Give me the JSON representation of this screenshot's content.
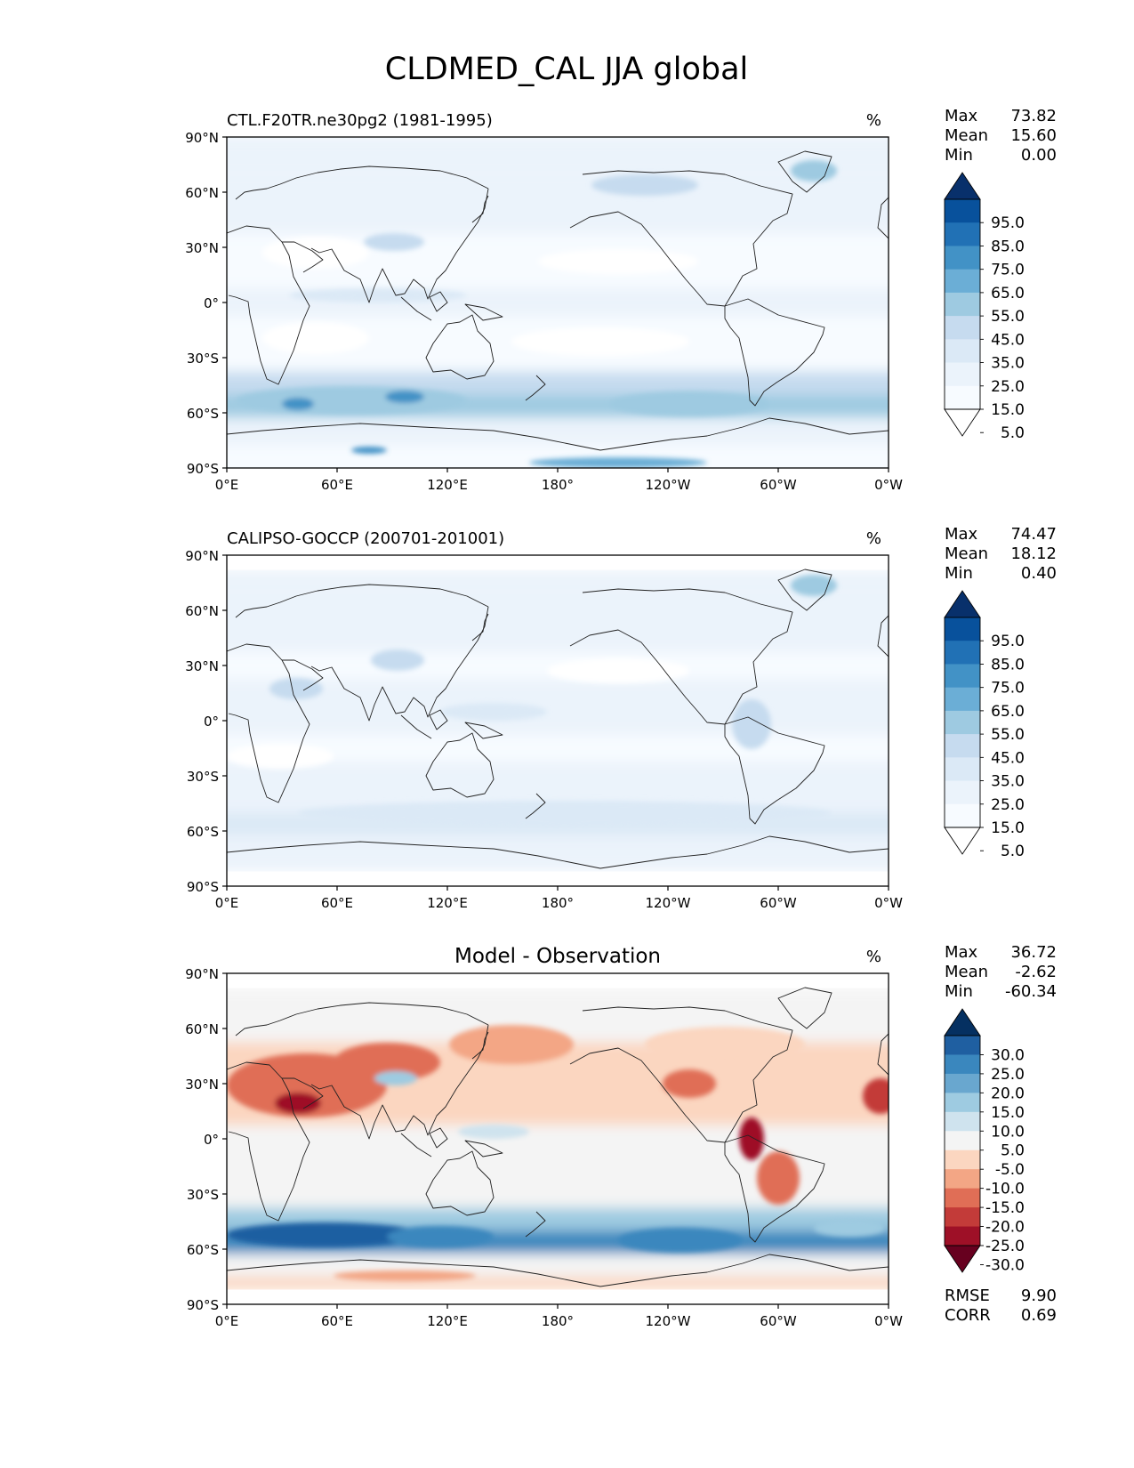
{
  "figure": {
    "title": "CLDMED_CAL JJA global"
  },
  "axes": {
    "lat_ticks": [
      "90°N",
      "60°N",
      "30°N",
      "0°",
      "30°S",
      "60°S",
      "90°S"
    ],
    "lon_ticks": [
      "0°E",
      "60°E",
      "120°E",
      "180°",
      "120°W",
      "60°W",
      "0°W"
    ]
  },
  "chart_data": [
    {
      "type": "heatmap",
      "title": "CTL.F20TR.ne30pg2 (1981-1995)",
      "units": "%",
      "stats": {
        "max_label": "Max",
        "max": "73.82",
        "mean_label": "Mean",
        "mean": "15.60",
        "min_label": "Min",
        "min": "0.00"
      },
      "colorbar": {
        "levels": [
          "95.0",
          "85.0",
          "75.0",
          "65.0",
          "55.0",
          "45.0",
          "35.0",
          "25.0",
          "15.0",
          "5.0"
        ],
        "colors": [
          "#08306b",
          "#08519c",
          "#2171b5",
          "#4292c6",
          "#6baed6",
          "#9ecae1",
          "#c6dbef",
          "#dbe9f6",
          "#ebf3fb",
          "#f7fbff",
          "#ffffff"
        ]
      },
      "zonal_mean_profile": [
        {
          "lat": 80,
          "value": 20
        },
        {
          "lat": 60,
          "value": 22
        },
        {
          "lat": 45,
          "value": 18
        },
        {
          "lat": 30,
          "value": 10
        },
        {
          "lat": 15,
          "value": 12
        },
        {
          "lat": 0,
          "value": 15
        },
        {
          "lat": -15,
          "value": 8
        },
        {
          "lat": -30,
          "value": 14
        },
        {
          "lat": -45,
          "value": 35
        },
        {
          "lat": -55,
          "value": 45
        },
        {
          "lat": -70,
          "value": 20
        },
        {
          "lat": -85,
          "value": 12
        }
      ]
    },
    {
      "type": "heatmap",
      "title": "CALIPSO-GOCCP (200701-201001)",
      "units": "%",
      "stats": {
        "max_label": "Max",
        "max": "74.47",
        "mean_label": "Mean",
        "mean": "18.12",
        "min_label": "Min",
        "min": "0.40"
      },
      "colorbar": {
        "levels": [
          "95.0",
          "85.0",
          "75.0",
          "65.0",
          "55.0",
          "45.0",
          "35.0",
          "25.0",
          "15.0",
          "5.0"
        ],
        "colors": [
          "#08306b",
          "#08519c",
          "#2171b5",
          "#4292c6",
          "#6baed6",
          "#9ecae1",
          "#c6dbef",
          "#dbe9f6",
          "#ebf3fb",
          "#f7fbff",
          "#ffffff"
        ]
      },
      "valid_lat_range": [
        -82,
        82
      ],
      "zonal_mean_profile": [
        {
          "lat": 80,
          "value": 22
        },
        {
          "lat": 60,
          "value": 24
        },
        {
          "lat": 45,
          "value": 22
        },
        {
          "lat": 30,
          "value": 14
        },
        {
          "lat": 15,
          "value": 16
        },
        {
          "lat": 0,
          "value": 18
        },
        {
          "lat": -15,
          "value": 10
        },
        {
          "lat": -30,
          "value": 15
        },
        {
          "lat": -45,
          "value": 24
        },
        {
          "lat": -55,
          "value": 26
        },
        {
          "lat": -70,
          "value": 22
        },
        {
          "lat": -80,
          "value": 18
        }
      ]
    },
    {
      "type": "heatmap",
      "title": "Model - Observation",
      "units": "%",
      "stats": {
        "max_label": "Max",
        "max": "36.72",
        "mean_label": "Mean",
        "mean": "-2.62",
        "min_label": "Min",
        "min": "-60.34"
      },
      "metrics": {
        "rmse_label": "RMSE",
        "rmse": "9.90",
        "corr_label": "CORR",
        "corr": "0.69"
      },
      "colorbar": {
        "levels": [
          "30.0",
          "25.0",
          "20.0",
          "15.0",
          "10.0",
          "5.0",
          "-5.0",
          "-10.0",
          "-15.0",
          "-20.0",
          "-25.0",
          "-30.0"
        ],
        "colors": [
          "#053061",
          "#1f5fa1",
          "#3a87be",
          "#69a7cf",
          "#9ecbe1",
          "#cfe3ee",
          "#f4f4f4",
          "#fbd6c0",
          "#f3a685",
          "#e06e56",
          "#c33b39",
          "#9e1027",
          "#67001f"
        ]
      },
      "valid_lat_range": [
        -82,
        82
      ],
      "zonal_mean_profile": [
        {
          "lat": 80,
          "value": -3
        },
        {
          "lat": 60,
          "value": -4
        },
        {
          "lat": 45,
          "value": -6
        },
        {
          "lat": 30,
          "value": -8
        },
        {
          "lat": 15,
          "value": -6
        },
        {
          "lat": 0,
          "value": -3
        },
        {
          "lat": -15,
          "value": -1
        },
        {
          "lat": -30,
          "value": 0
        },
        {
          "lat": -45,
          "value": 12
        },
        {
          "lat": -55,
          "value": 20
        },
        {
          "lat": -70,
          "value": -2
        },
        {
          "lat": -80,
          "value": -6
        }
      ]
    }
  ]
}
